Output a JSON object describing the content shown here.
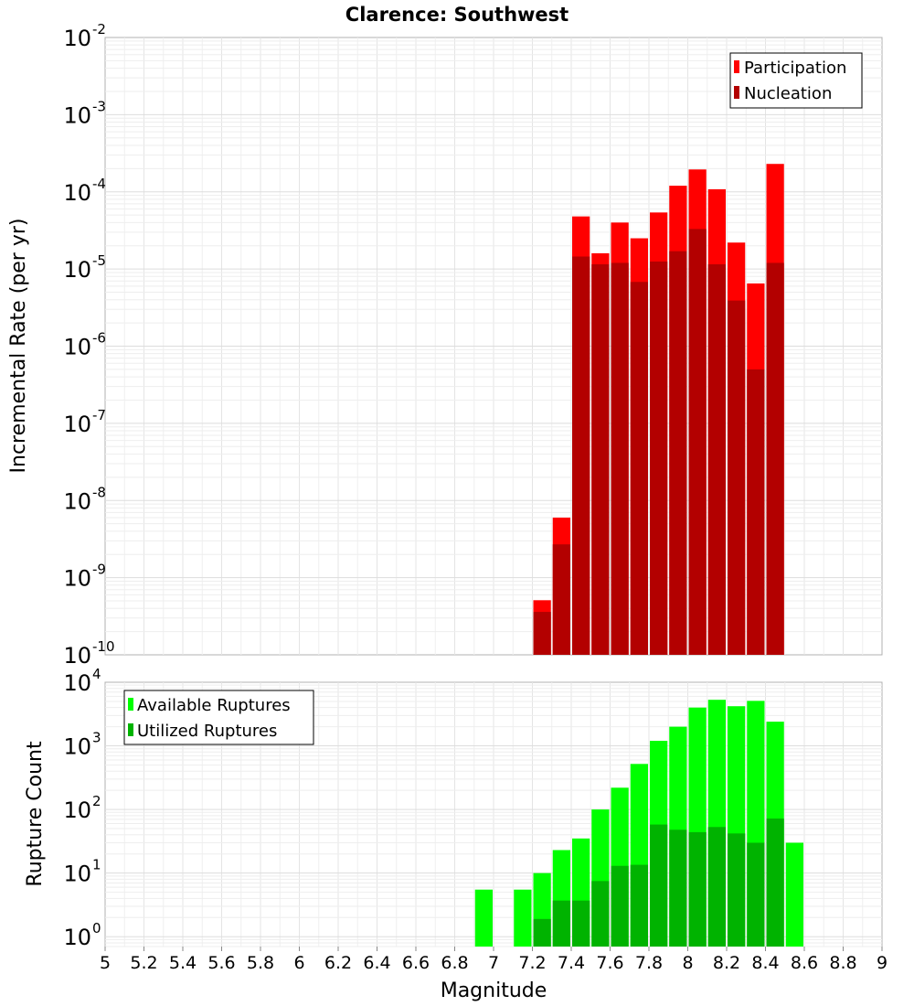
{
  "chart_data": [
    {
      "type": "bar",
      "title": "Clarence: Southwest",
      "xlabel": "",
      "ylabel": "Incremental Rate (per yr)",
      "yscale": "log",
      "xlim": [
        5,
        9
      ],
      "ylim": [
        1e-10,
        0.01
      ],
      "y_tick_exponents": [
        -10,
        -9,
        -8,
        -7,
        -6,
        -5,
        -4,
        -3,
        -2
      ],
      "legend_position": "top-right",
      "legend": [
        "Participation",
        "Nucleation"
      ],
      "x": [
        7.25,
        7.35,
        7.45,
        7.55,
        7.65,
        7.75,
        7.85,
        7.95,
        8.05,
        8.15,
        8.25,
        8.35,
        8.45
      ],
      "series": [
        {
          "name": "Participation",
          "color": "#ff0000",
          "values": [
            5.1e-10,
            6e-09,
            4.8e-05,
            1.6e-05,
            4e-05,
            2.5e-05,
            5.4e-05,
            0.00012,
            0.000195,
            0.000108,
            2.2e-05,
            6.5e-06,
            0.00023
          ]
        },
        {
          "name": "Nucleation",
          "color": "#b30000",
          "values": [
            3.6e-10,
            2.7e-09,
            1.45e-05,
            1.15e-05,
            1.2e-05,
            6.8e-06,
            1.25e-05,
            1.7e-05,
            3.3e-05,
            1.15e-05,
            3.9e-06,
            5e-07,
            1.2e-05
          ]
        }
      ]
    },
    {
      "type": "bar",
      "title": "",
      "xlabel": "Magnitude",
      "ylabel": "Rupture Count",
      "yscale": "log",
      "xlim": [
        5,
        9
      ],
      "ylim": [
        0.7,
        10000
      ],
      "x_ticks": [
        "5",
        "5.2",
        "5.4",
        "5.6",
        "5.8",
        "6",
        "6.2",
        "6.4",
        "6.6",
        "6.8",
        "7",
        "7.2",
        "7.4",
        "7.6",
        "7.8",
        "8",
        "8.2",
        "8.4",
        "8.6",
        "8.8",
        "9"
      ],
      "y_tick_exponents": [
        0,
        1,
        2,
        3,
        4
      ],
      "legend_position": "top-left",
      "legend": [
        "Available Ruptures",
        "Utilized Ruptures"
      ],
      "x": [
        6.95,
        7.05,
        7.15,
        7.25,
        7.35,
        7.45,
        7.55,
        7.65,
        7.75,
        7.85,
        7.95,
        8.05,
        8.15,
        8.25,
        8.35,
        8.45,
        8.55
      ],
      "series": [
        {
          "name": "Available Ruptures",
          "color": "#00ff00",
          "values": [
            5.5,
            0,
            5.5,
            10,
            23,
            35,
            100,
            220,
            520,
            1200,
            2000,
            4000,
            5300,
            4200,
            5100,
            2400,
            30
          ]
        },
        {
          "name": "Utilized Ruptures",
          "color": "#00b300",
          "values": [
            0,
            0,
            0,
            1.9,
            3.7,
            3.7,
            7.5,
            13,
            13.5,
            58,
            48,
            44,
            53,
            42,
            30,
            72,
            0
          ]
        }
      ]
    }
  ]
}
